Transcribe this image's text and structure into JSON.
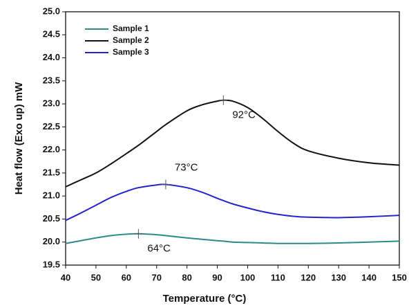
{
  "chart_data": {
    "type": "line",
    "xlabel": "Temperature (°C)",
    "ylabel": "Heat flow (Exo up) mW",
    "x": [
      40,
      45,
      50,
      55,
      60,
      64,
      70,
      73,
      80,
      85,
      90,
      92,
      95,
      100,
      105,
      110,
      115,
      120,
      130,
      140,
      150
    ],
    "series": [
      {
        "name": "Sample 1",
        "color": "#2a8a8a",
        "values": [
          19.97,
          20.03,
          20.09,
          20.14,
          20.17,
          20.18,
          20.16,
          20.14,
          20.09,
          20.06,
          20.03,
          20.02,
          20.0,
          19.99,
          19.98,
          19.97,
          19.97,
          19.97,
          19.98,
          20.0,
          20.02
        ]
      },
      {
        "name": "Sample 2",
        "color": "#111111",
        "values": [
          21.2,
          21.35,
          21.5,
          21.7,
          21.92,
          22.1,
          22.4,
          22.55,
          22.85,
          22.98,
          23.06,
          23.08,
          23.06,
          22.92,
          22.68,
          22.4,
          22.15,
          21.98,
          21.82,
          21.72,
          21.67
        ]
      },
      {
        "name": "Sample 3",
        "color": "#2424c8",
        "values": [
          20.47,
          20.63,
          20.8,
          20.97,
          21.1,
          21.18,
          21.24,
          21.25,
          21.18,
          21.08,
          20.95,
          20.9,
          20.83,
          20.74,
          20.66,
          20.6,
          20.56,
          20.54,
          20.53,
          20.55,
          20.58
        ]
      }
    ],
    "annotations": [
      {
        "text": "92°C",
        "x": 92,
        "y": 23.08,
        "position": "below"
      },
      {
        "text": "73°C",
        "x": 73,
        "y": 21.25,
        "position": "above"
      },
      {
        "text": "64°C",
        "x": 64,
        "y": 20.18,
        "position": "below"
      }
    ],
    "xlim": [
      40,
      150
    ],
    "xticks": [
      40,
      50,
      60,
      70,
      80,
      90,
      100,
      110,
      120,
      130,
      140,
      150
    ],
    "ylim": [
      19.5,
      25
    ],
    "yticks": [
      19.5,
      {
        "value": 20,
        "label": "20.0"
      },
      20.5,
      {
        "value": 21,
        "label": "21.0"
      },
      21.5,
      {
        "value": 22,
        "label": "22.0"
      },
      22.5,
      {
        "value": 23,
        "label": "23.0"
      },
      23.5,
      {
        "value": 24,
        "label": "24.0"
      },
      24.5,
      {
        "value": 25,
        "label": "25.0"
      }
    ],
    "legend": "upper left",
    "grid": false
  }
}
